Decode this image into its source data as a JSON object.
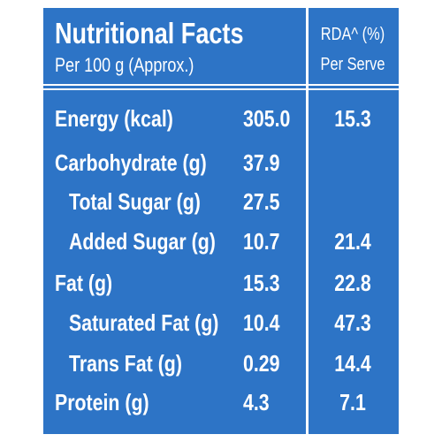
{
  "header": {
    "title": "Nutritional Facts",
    "subtitle": "Per 100 g (Approx.)",
    "rda_title": "RDA^ (%)",
    "rda_subtitle": "Per Serve"
  },
  "table": {
    "rows": [
      [
        "Energy (kcal)",
        "305.0",
        "15.3"
      ],
      [
        "Carbohydrate (g)",
        "37.9"
      ],
      [
        "Total Sugar (g)",
        "27.5"
      ],
      [
        "Added Sugar (g)",
        "10.7",
        "21.4"
      ],
      [
        "Fat (g)",
        "15.3",
        "22.8"
      ],
      [
        "Saturated Fat (g)",
        "10.4",
        "47.3"
      ],
      [
        "Trans Fat (g)",
        "0.29",
        "14.4"
      ],
      [
        "Protein (g)",
        "4.3",
        "7.1"
      ]
    ]
  }
}
